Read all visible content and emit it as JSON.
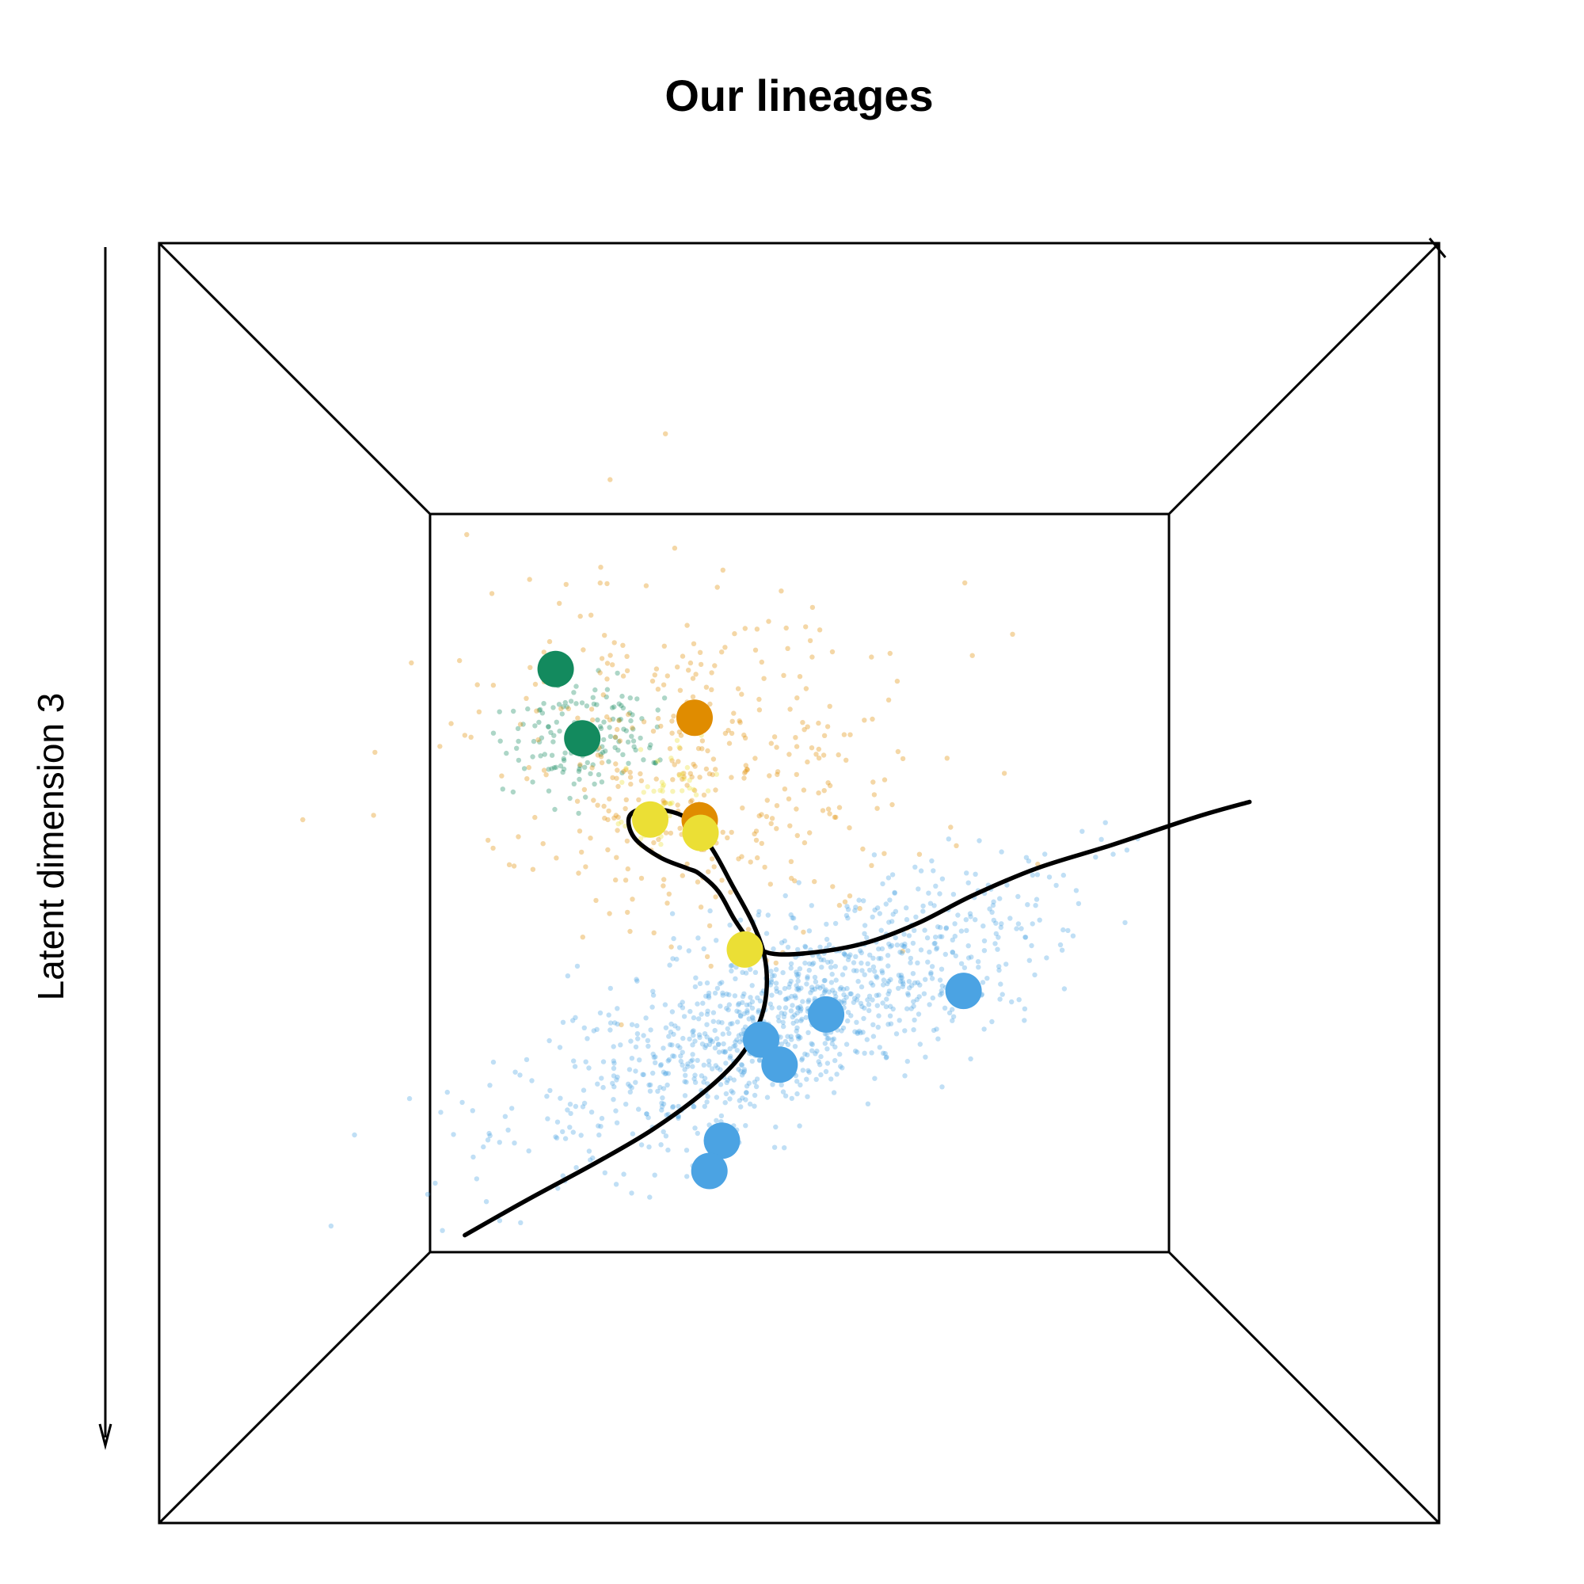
{
  "chart_data": {
    "type": "scatter",
    "projection": "3d-perspective-box",
    "title": "Our lineages",
    "zlabel": "Latent dimension 3",
    "xlabel": "",
    "ylabel": "",
    "colors": {
      "green": "#138a5e",
      "orange": "#e08c00",
      "yellow": "#ebdf35",
      "blue": "#4ba3e3",
      "curve": "#000000"
    },
    "clusters": [
      {
        "name": "green",
        "color": "#138a5e",
        "count": 160,
        "center": [
          0.21,
          0.3
        ],
        "spread": [
          0.11,
          0.08
        ],
        "rotation": -0.25
      },
      {
        "name": "orange",
        "color": "#e08c00",
        "count": 420,
        "center": [
          0.36,
          0.34
        ],
        "spread": [
          0.3,
          0.22
        ],
        "rotation": 0.1
      },
      {
        "name": "yellow",
        "color": "#ebdf35",
        "count": 60,
        "center": [
          0.32,
          0.38
        ],
        "spread": [
          0.06,
          0.1
        ],
        "rotation": 0.3
      },
      {
        "name": "blue",
        "color": "#4ba3e3",
        "count": 1100,
        "center": [
          0.48,
          0.68
        ],
        "spread": [
          0.36,
          0.12
        ],
        "rotation": -0.42
      }
    ],
    "centroids": [
      {
        "cluster": "green",
        "x": 0.17,
        "y": 0.21
      },
      {
        "cluster": "green",
        "x": 0.206,
        "y": 0.304
      },
      {
        "cluster": "orange",
        "x": 0.358,
        "y": 0.276
      },
      {
        "cluster": "orange",
        "x": 0.365,
        "y": 0.415
      },
      {
        "cluster": "yellow",
        "x": 0.298,
        "y": 0.414
      },
      {
        "cluster": "yellow",
        "x": 0.366,
        "y": 0.432
      },
      {
        "cluster": "yellow",
        "x": 0.426,
        "y": 0.59
      },
      {
        "cluster": "blue",
        "x": 0.536,
        "y": 0.678
      },
      {
        "cluster": "blue",
        "x": 0.722,
        "y": 0.646
      },
      {
        "cluster": "blue",
        "x": 0.448,
        "y": 0.712
      },
      {
        "cluster": "blue",
        "x": 0.473,
        "y": 0.746
      },
      {
        "cluster": "blue",
        "x": 0.395,
        "y": 0.849
      },
      {
        "cluster": "blue",
        "x": 0.378,
        "y": 0.89
      }
    ],
    "lineage_curve": [
      [
        0.047,
        0.977
      ],
      [
        0.13,
        0.93
      ],
      [
        0.226,
        0.878
      ],
      [
        0.301,
        0.834
      ],
      [
        0.372,
        0.782
      ],
      [
        0.418,
        0.737
      ],
      [
        0.444,
        0.693
      ],
      [
        0.455,
        0.65
      ],
      [
        0.453,
        0.601
      ],
      [
        0.437,
        0.555
      ],
      [
        0.409,
        0.503
      ],
      [
        0.38,
        0.451
      ],
      [
        0.346,
        0.411
      ],
      [
        0.296,
        0.399
      ],
      [
        0.27,
        0.409
      ],
      [
        0.276,
        0.438
      ],
      [
        0.311,
        0.465
      ],
      [
        0.348,
        0.48
      ],
      [
        0.364,
        0.487
      ],
      [
        0.39,
        0.511
      ],
      [
        0.413,
        0.551
      ],
      [
        0.437,
        0.582
      ],
      [
        0.466,
        0.596
      ],
      [
        0.527,
        0.593
      ],
      [
        0.593,
        0.58
      ],
      [
        0.661,
        0.554
      ],
      [
        0.734,
        0.517
      ],
      [
        0.821,
        0.48
      ],
      [
        0.924,
        0.448
      ],
      [
        1.035,
        0.411
      ],
      [
        1.109,
        0.39
      ]
    ]
  }
}
